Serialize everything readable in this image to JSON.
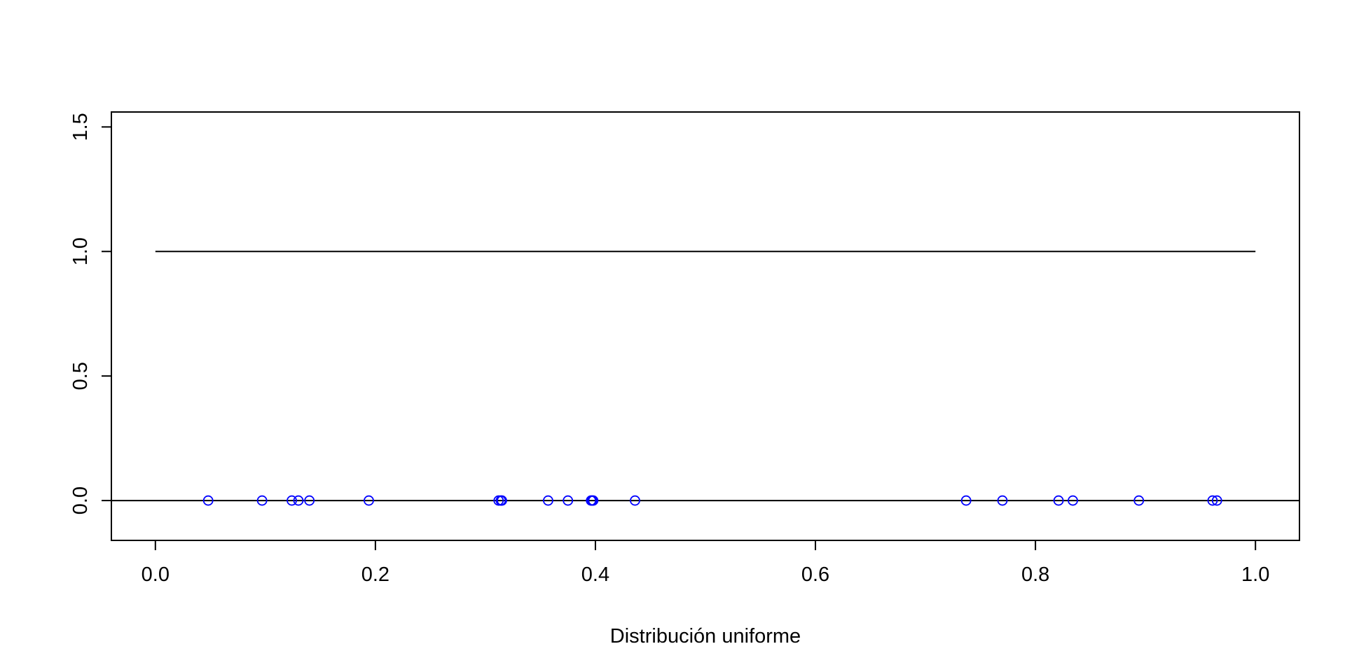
{
  "chart_data": {
    "type": "scatter",
    "title": "",
    "xlabel": "Distribución uniforme",
    "ylabel": "",
    "xlim": [
      -0.04,
      1.04
    ],
    "ylim": [
      -0.16,
      1.56
    ],
    "x_ticks": [
      0.0,
      0.2,
      0.4,
      0.6,
      0.8,
      1.0
    ],
    "x_tick_labels": [
      "0.0",
      "0.2",
      "0.4",
      "0.6",
      "0.8",
      "1.0"
    ],
    "y_ticks": [
      0.0,
      0.5,
      1.0,
      1.5
    ],
    "y_tick_labels": [
      "0.0",
      "0.5",
      "1.0",
      "1.5"
    ],
    "grid": false,
    "density_line": {
      "x": [
        0,
        1
      ],
      "y": [
        1,
        1
      ],
      "color": "#000000"
    },
    "baseline": {
      "y": 0,
      "color": "#000000"
    },
    "points": {
      "color": "#0000ff",
      "marker": "open-circle",
      "x": [
        0.048,
        0.097,
        0.124,
        0.13,
        0.14,
        0.194,
        0.312,
        0.314,
        0.315,
        0.357,
        0.375,
        0.396,
        0.397,
        0.398,
        0.436,
        0.737,
        0.77,
        0.821,
        0.834,
        0.894,
        0.961,
        0.965
      ],
      "y": [
        0,
        0,
        0,
        0,
        0,
        0,
        0,
        0,
        0,
        0,
        0,
        0,
        0,
        0,
        0,
        0,
        0,
        0,
        0,
        0,
        0,
        0
      ]
    }
  }
}
